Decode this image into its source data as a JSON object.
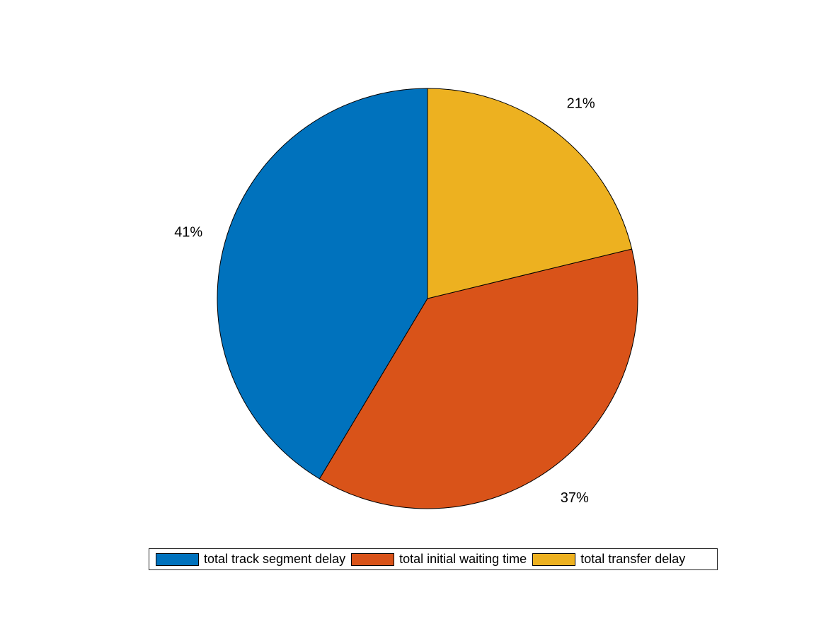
{
  "chart_data": {
    "type": "pie",
    "slices": [
      {
        "name": "total track segment delay",
        "value": 41,
        "label": "41%",
        "color": "#0072BD"
      },
      {
        "name": "total initial waiting time",
        "value": 37,
        "label": "37%",
        "color": "#D95319"
      },
      {
        "name": "total transfer delay",
        "value": 21,
        "label": "21%",
        "color": "#EDB120"
      }
    ],
    "legend_position": "bottom",
    "direction": "counterclockwise",
    "start_angle": "top"
  }
}
